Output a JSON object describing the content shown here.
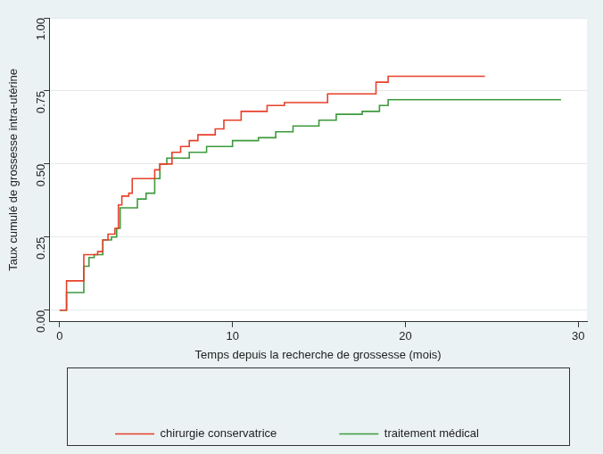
{
  "chart_data": {
    "type": "step",
    "x_label": "Temps depuis la recherche de grossesse (mois)",
    "y_label": "Taux cumulé de grossesse intra-utérine",
    "xlim": [
      -0.6,
      30.5
    ],
    "xticks": [
      0,
      10,
      20,
      30
    ],
    "ylim": [
      -0.04,
      1.0
    ],
    "yticks": [
      {
        "value": 0,
        "label": "0.00"
      },
      {
        "value": 0.25,
        "label": "0.25"
      },
      {
        "value": 0.5,
        "label": "0.50"
      },
      {
        "value": 0.75,
        "label": "0.75"
      },
      {
        "value": 1,
        "label": "1.00"
      }
    ],
    "grid": true,
    "legend": "bottom",
    "series": [
      {
        "name": "chirurgie conservatrice",
        "color": "#e8402a",
        "x": [
          0,
          0.4,
          1.4,
          2.2,
          2.5,
          2.8,
          3.2,
          3.4,
          3.6,
          4.0,
          4.2,
          5.5,
          5.8,
          6.5,
          7.0,
          7.5,
          8.0,
          9.0,
          9.5,
          10.5,
          12.0,
          13.0,
          15.5,
          18.3,
          19.0,
          24.6
        ],
        "values": [
          0,
          0.1,
          0.19,
          0.2,
          0.24,
          0.26,
          0.28,
          0.36,
          0.39,
          0.4,
          0.45,
          0.48,
          0.5,
          0.54,
          0.56,
          0.58,
          0.6,
          0.62,
          0.65,
          0.68,
          0.7,
          0.71,
          0.74,
          0.78,
          0.8,
          0.8
        ]
      },
      {
        "name": "traitement médical",
        "color": "#3c9a3c",
        "x": [
          0,
          0.4,
          1.4,
          1.7,
          2.0,
          2.5,
          3.0,
          3.3,
          3.5,
          4.5,
          5.0,
          5.5,
          5.8,
          6.2,
          7.5,
          8.5,
          10.0,
          11.5,
          12.5,
          13.5,
          15.0,
          16.0,
          17.5,
          18.5,
          19.0,
          29.0
        ],
        "values": [
          0,
          0.06,
          0.15,
          0.18,
          0.19,
          0.24,
          0.25,
          0.28,
          0.35,
          0.38,
          0.4,
          0.45,
          0.5,
          0.52,
          0.54,
          0.56,
          0.58,
          0.59,
          0.61,
          0.63,
          0.65,
          0.67,
          0.68,
          0.7,
          0.72,
          0.72
        ]
      }
    ]
  }
}
